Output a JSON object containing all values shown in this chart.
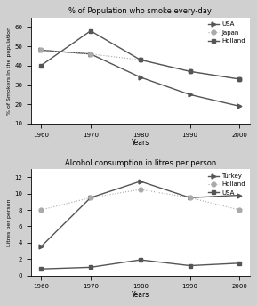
{
  "years": [
    1960,
    1970,
    1980,
    1990,
    2000
  ],
  "smoke_title": "% of Population who smoke every-day",
  "smoke_ylabel": "% of Smokers In the population",
  "smoke_xlabel": "Years",
  "smoke_ylim": [
    10,
    65
  ],
  "smoke_yticks": [
    10,
    20,
    30,
    40,
    50,
    60
  ],
  "smoke_usa": [
    48,
    46,
    34,
    25,
    19
  ],
  "smoke_japan": [
    48,
    46,
    43,
    37,
    33
  ],
  "smoke_holland": [
    40,
    58,
    43,
    37,
    33
  ],
  "alcohol_title": "Alcohol consumption in litres per person",
  "alcohol_ylabel": "Litres per person",
  "alcohol_xlabel": "Years",
  "alcohol_ylim": [
    0,
    13
  ],
  "alcohol_yticks": [
    0,
    2,
    4,
    6,
    8,
    10,
    12
  ],
  "alcohol_turkey": [
    3.5,
    9.5,
    11.5,
    9.5,
    9.8
  ],
  "alcohol_holland": [
    8.0,
    9.5,
    10.5,
    9.5,
    8.0
  ],
  "alcohol_usa": [
    0.8,
    1.0,
    1.9,
    1.2,
    1.5
  ],
  "line_color": "#555555",
  "dot_color": "#aaaaaa",
  "bg_color": "#ffffff",
  "fig_bg": "#d0d0d0"
}
